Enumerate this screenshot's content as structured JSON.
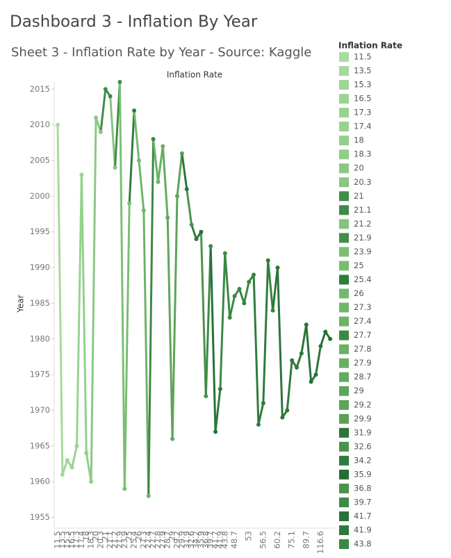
{
  "chart_data": {
    "type": "line",
    "title": "Dashboard 3 - Inflation By Year",
    "subtitle": "Sheet 3 - Inflation Rate by Year - Source: Kaggle",
    "header_label": "Inflation Rate",
    "y_label": "Year",
    "categories": [
      "11.5",
      "13.5",
      "15.3",
      "16.5",
      "17.3",
      "17.4",
      "18",
      "18.3",
      "20",
      "20.3",
      "21",
      "21.1",
      "21.2",
      "21.9",
      "23.9",
      "25",
      "25.4",
      "26",
      "27.3",
      "27.4",
      "27.7",
      "27.8",
      "27.9",
      "28.7",
      "29",
      "29.2",
      "29.9",
      "31.9",
      "32.6",
      "34.2",
      "35.9",
      "36.8",
      "39.7",
      "41.7",
      "41.9",
      "43.8",
      null,
      "48.7",
      null,
      null,
      "53",
      null,
      null,
      "56.5",
      null,
      null,
      "60.2",
      null,
      null,
      "75.1",
      null,
      null,
      "89.7",
      null,
      null,
      "116.6",
      null,
      null
    ],
    "series": [
      {
        "values": [
          2010,
          1961,
          1963,
          1962,
          1965,
          2003,
          1964,
          1960,
          2011,
          2009,
          2015,
          2014,
          2004,
          2016,
          1959,
          1999,
          2012,
          2005,
          1998,
          1958,
          2008,
          2002,
          2007,
          1997,
          1966,
          2000,
          2006,
          2001,
          1996,
          1994,
          1995,
          1972,
          1993,
          1967,
          1973,
          1992,
          1983,
          1986,
          1987,
          1985,
          1988,
          1989,
          1968,
          1971,
          1991,
          1984,
          1990,
          1969,
          1970,
          1977,
          1976,
          1978,
          1982,
          1974,
          1975,
          1979,
          1981,
          1980
        ],
        "colors": [
          "#a9dba0",
          "#a6d99c",
          "#a0d698",
          "#9bd493",
          "#98d291",
          "#98d291",
          "#93cf8c",
          "#90cd89",
          "#8ac884",
          "#88c682",
          "#3f8e4a",
          "#3d8b47",
          "#84c47e",
          "#3f8e4a",
          "#7bbf75",
          "#79bd73",
          "#2f7d3c",
          "#74b96e",
          "#6fb56a",
          "#6cb367",
          "#3a8845",
          "#6ab166",
          "#68af64",
          "#64ab60",
          "#5fa65b",
          "#5da359",
          "#5aa057",
          "#2a7637",
          "#49934c",
          "#2f7c3c",
          "#246f33",
          "#4a924d",
          "#3f8a46",
          "#26713a",
          "#2e7a3c",
          "#3b8744",
          "#3a8644",
          "#3b8744",
          "#3a8644",
          "#38843f",
          "#3b8744",
          "#36823f",
          "#2f7c3c",
          "#2f7c3c",
          "#2e7a3c",
          "#36823f",
          "#2a7637",
          "#2a7637",
          "#2a7637",
          "#2e7a3c",
          "#2e7a3c",
          "#2a7637",
          "#2a7637",
          "#26713a",
          "#26713a",
          "#2a7637",
          "#246f33",
          "#246f33"
        ]
      }
    ],
    "ylim": [
      1953.5,
      2016
    ],
    "yticks": [
      1955,
      1960,
      1965,
      1970,
      1975,
      1980,
      1985,
      1990,
      1995,
      2000,
      2005,
      2010,
      2015
    ],
    "legend": {
      "title": "Inflation Rate",
      "labels": [
        "11.5",
        "13.5",
        "15.3",
        "16.5",
        "17.3",
        "17.4",
        "18",
        "18.3",
        "20",
        "20.3",
        "21",
        "21.1",
        "21.2",
        "21.9",
        "23.9",
        "25",
        "25.4",
        "26",
        "27.3",
        "27.4",
        "27.7",
        "27.8",
        "27.9",
        "28.7",
        "29",
        "29.2",
        "29.9",
        "31.9",
        "32.6",
        "34.2",
        "35.9",
        "36.8",
        "39.7",
        "41.7",
        "41.9",
        "43.8"
      ],
      "colors": [
        "#a9dba0",
        "#a6d99c",
        "#a0d698",
        "#9bd493",
        "#98d291",
        "#98d291",
        "#93cf8c",
        "#90cd89",
        "#8ac884",
        "#88c682",
        "#3f8e4a",
        "#3d8b47",
        "#84c47e",
        "#3f8e4a",
        "#7bbf75",
        "#79bd73",
        "#2f7d3c",
        "#74b96e",
        "#6fb56a",
        "#6cb367",
        "#3a8845",
        "#6ab166",
        "#68af64",
        "#64ab60",
        "#5fa65b",
        "#5da359",
        "#5aa057",
        "#2a7637",
        "#49934c",
        "#2f7c3c",
        "#246f33",
        "#4a924d",
        "#3f8a46",
        "#26713a",
        "#2e7a3c",
        "#3b8744"
      ]
    }
  }
}
